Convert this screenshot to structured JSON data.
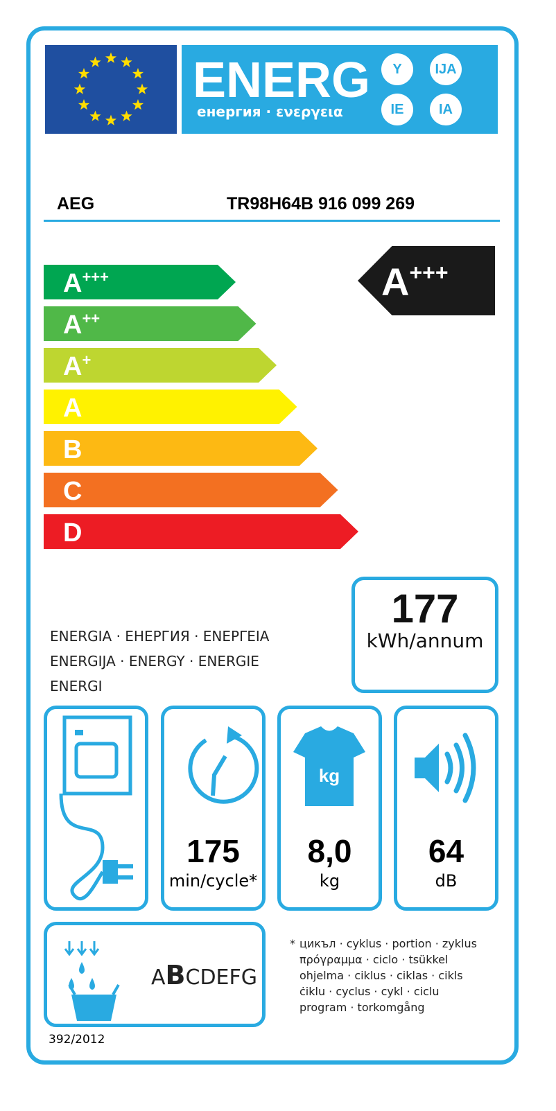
{
  "header": {
    "title": "ENERG",
    "subtitle": "енергия · ενεργεια",
    "suffixes": [
      "Y",
      "IJA",
      "IE",
      "IA"
    ]
  },
  "supplier": "AEG",
  "model": "TR98H64B  916 099 269",
  "scale": [
    {
      "letter": "A",
      "plus": "+++",
      "color": "#00a651"
    },
    {
      "letter": "A",
      "plus": "++",
      "color": "#50b848"
    },
    {
      "letter": "A",
      "plus": "+",
      "color": "#bed630"
    },
    {
      "letter": "A",
      "plus": "",
      "color": "#fff200"
    },
    {
      "letter": "B",
      "plus": "",
      "color": "#fdb913"
    },
    {
      "letter": "C",
      "plus": "",
      "color": "#f37021"
    },
    {
      "letter": "D",
      "plus": "",
      "color": "#ed1c24"
    }
  ],
  "rating": {
    "letter": "A",
    "plus": "+++"
  },
  "energy": {
    "value": "177",
    "unit": "kWh/annum",
    "label_lines": [
      "ENERGIA · ЕНЕРГИЯ · ΕΝΕΡΓΕΙΑ",
      "ENERGIJA · ENERGY · ENERGIE",
      "ENERGI"
    ]
  },
  "cycle": {
    "value": "175",
    "unit": "min/cycle*"
  },
  "capacity": {
    "value": "8,0",
    "unit": "kg",
    "icon_text": "kg"
  },
  "noise": {
    "value": "64",
    "unit": "dB"
  },
  "condensation": {
    "class": "B",
    "scale_before": "A",
    "scale_after": "CDEFG"
  },
  "footnote": {
    "star": "*",
    "lines": [
      "цикъл · cyklus · portion · zyklus",
      "πρόγραμμα · ciclo · tsükkel",
      "ohjelma · ciklus · ciklas · cikls",
      "ċiklu · cyclus · cykl · ciclu",
      "program · torkomgång"
    ]
  },
  "regulation": "392/2012",
  "colors": {
    "frame": "#29aae1",
    "eu_blue": "#1f4fa0",
    "star": "#ffdd00"
  }
}
